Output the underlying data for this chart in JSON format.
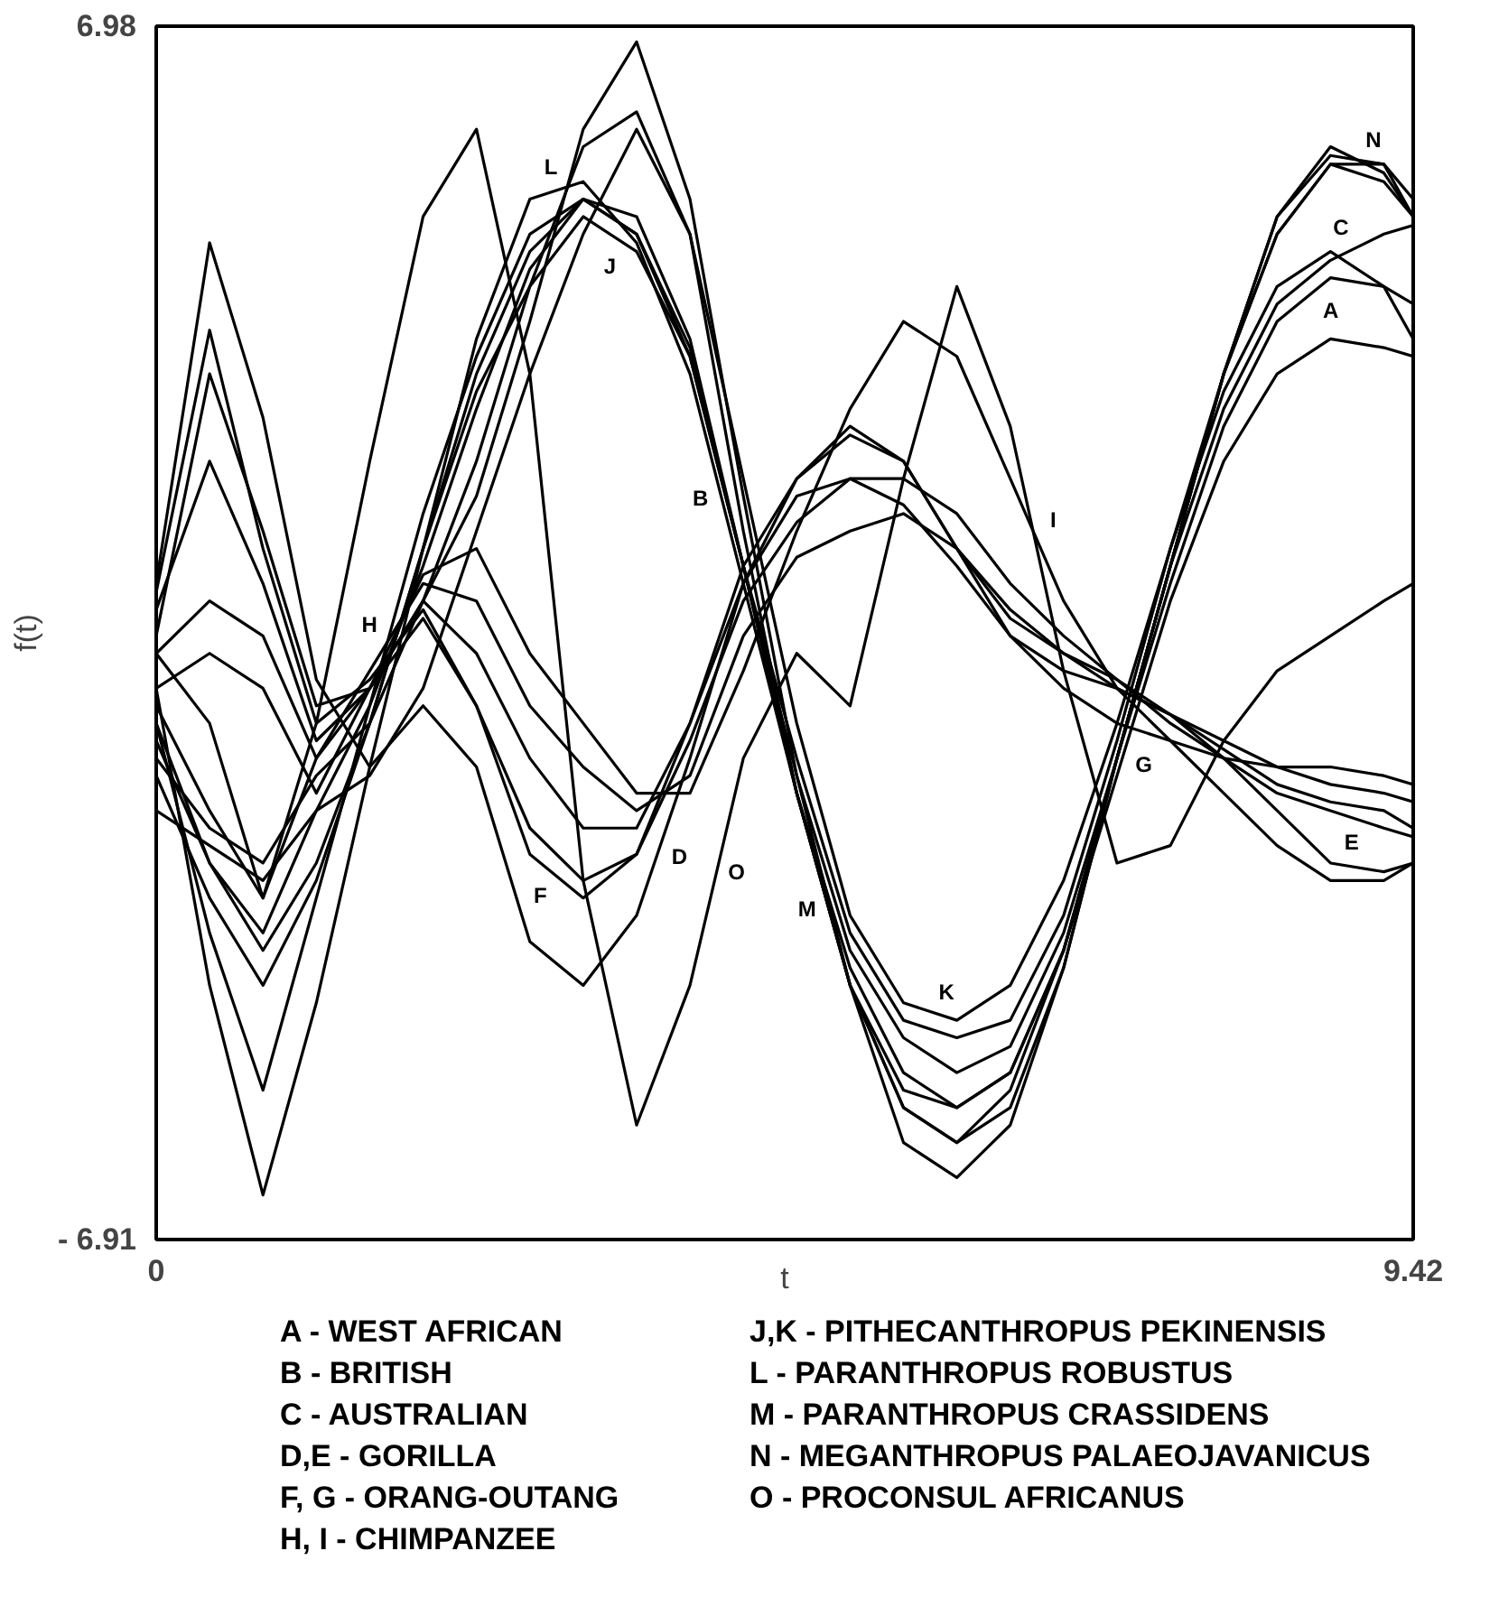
{
  "chart_data": {
    "type": "line",
    "xlabel": "t",
    "ylabel": "f(t)",
    "xlim": [
      0,
      9.42
    ],
    "xticks": [
      0,
      9.42
    ],
    "ylim": [
      -6.91,
      6.98
    ],
    "yticks": [
      6.98,
      {
        "value": -6.91,
        "label": "- 6.91"
      }
    ],
    "line_style": "solid",
    "x": [
      0,
      0.4,
      0.8,
      1.2,
      1.6,
      2.0,
      2.4,
      2.8,
      3.2,
      3.6,
      4.0,
      4.4,
      4.8,
      5.2,
      5.6,
      6.0,
      6.4,
      6.8,
      7.2,
      7.6,
      8.0,
      8.4,
      8.8,
      9.2,
      9.42
    ],
    "series": [
      {
        "name": "A",
        "color": "#000000",
        "values": [
          -1.6,
          -3.0,
          -4.0,
          -2.8,
          -1.0,
          1.0,
          3.0,
          4.4,
          5.0,
          4.6,
          3.3,
          0.8,
          -1.6,
          -3.6,
          -4.6,
          -5.0,
          -4.7,
          -3.4,
          -1.4,
          0.6,
          2.4,
          3.6,
          4.1,
          4.0,
          3.8
        ]
      },
      {
        "name": "B",
        "color": "#000000",
        "values": [
          -0.6,
          -4.0,
          -6.4,
          -4.2,
          -1.5,
          1.0,
          3.4,
          5.0,
          5.2,
          4.5,
          3.0,
          0.6,
          -1.8,
          -3.8,
          -5.0,
          -5.4,
          -5.0,
          -3.6,
          -1.6,
          0.4,
          2.0,
          3.0,
          3.4,
          3.3,
          3.2
        ]
      },
      {
        "name": "C",
        "color": "#000000",
        "values": [
          -1.0,
          -3.4,
          -5.2,
          -3.0,
          -0.8,
          1.4,
          3.2,
          4.6,
          5.0,
          4.6,
          3.2,
          0.8,
          -1.8,
          -4.0,
          -5.4,
          -5.8,
          -5.4,
          -3.8,
          -1.4,
          0.8,
          2.6,
          3.8,
          4.3,
          4.6,
          4.7
        ]
      },
      {
        "name": "D",
        "color": "#000000",
        "values": [
          0.6,
          4.5,
          2.5,
          -0.5,
          -1.5,
          -0.8,
          -1.5,
          -3.5,
          -4.0,
          -3.2,
          -1.4,
          0.6,
          1.8,
          2.4,
          2.0,
          1.0,
          0.0,
          -0.4,
          -0.6,
          -0.9,
          -1.2,
          -1.5,
          -1.7,
          -1.8,
          -1.9
        ]
      },
      {
        "name": "E",
        "color": "#000000",
        "values": [
          0.0,
          3.0,
          1.2,
          -0.8,
          -0.6,
          0.2,
          -0.8,
          -2.2,
          -2.8,
          -2.5,
          -1.2,
          0.4,
          1.3,
          1.8,
          1.8,
          1.4,
          0.6,
          0.0,
          -0.5,
          -1.0,
          -1.4,
          -1.8,
          -2.0,
          -2.2,
          -2.3
        ]
      },
      {
        "name": "F",
        "color": "#000000",
        "values": [
          0.5,
          3.5,
          1.0,
          -1.0,
          -0.5,
          0.3,
          -0.8,
          -2.5,
          -3.0,
          -2.5,
          -1.0,
          0.8,
          1.8,
          2.3,
          2.0,
          1.0,
          0.2,
          -0.2,
          -0.5,
          -0.9,
          -1.3,
          -1.7,
          -1.9,
          -2.0,
          -2.2
        ]
      },
      {
        "name": "G",
        "color": "#000000",
        "values": [
          0.3,
          2.0,
          0.6,
          -1.2,
          -0.6,
          0.4,
          -0.2,
          -1.4,
          -2.2,
          -2.2,
          -1.0,
          0.6,
          1.6,
          1.8,
          1.5,
          0.8,
          0.0,
          -0.6,
          -1.0,
          -1.2,
          -1.4,
          -1.5,
          -1.5,
          -1.6,
          -1.7
        ]
      },
      {
        "name": "H",
        "color": "#000000",
        "values": [
          -0.2,
          0.4,
          0.0,
          -1.4,
          -0.4,
          0.6,
          0.4,
          -0.8,
          -1.5,
          -2.0,
          -1.6,
          0.0,
          0.9,
          1.2,
          1.4,
          1.0,
          0.3,
          -0.2,
          -0.6,
          -0.9,
          -1.4,
          -2.0,
          -2.6,
          -2.7,
          -2.6
        ]
      },
      {
        "name": "I",
        "color": "#000000",
        "values": [
          -0.6,
          -0.2,
          -0.6,
          -1.8,
          -0.6,
          0.7,
          1.0,
          -0.2,
          -1.0,
          -1.8,
          -1.8,
          -0.4,
          1.2,
          2.6,
          3.6,
          3.2,
          1.8,
          0.4,
          -0.6,
          -1.2,
          -1.8,
          -2.4,
          -2.8,
          -2.8,
          -2.6
        ]
      },
      {
        "name": "J",
        "color": "#000000",
        "values": [
          -1.2,
          -2.6,
          -3.6,
          -2.6,
          -1.0,
          1.0,
          2.8,
          4.0,
          4.8,
          4.4,
          3.2,
          0.8,
          -1.4,
          -3.4,
          -4.4,
          -4.6,
          -4.4,
          -3.2,
          -1.2,
          1.0,
          3.0,
          4.6,
          5.4,
          5.4,
          4.8
        ]
      },
      {
        "name": "K",
        "color": "#000000",
        "values": [
          -2.0,
          -2.4,
          -2.8,
          -2.0,
          -1.6,
          -0.6,
          1.2,
          3.0,
          4.6,
          5.8,
          4.6,
          1.8,
          -1.0,
          -3.2,
          -4.2,
          -4.4,
          -4.0,
          -2.8,
          -1.0,
          1.0,
          2.8,
          4.0,
          4.4,
          4.0,
          3.4
        ]
      },
      {
        "name": "L",
        "color": "#000000",
        "values": [
          -0.8,
          -2.0,
          -3.0,
          -1.4,
          -0.6,
          0.4,
          1.6,
          3.6,
          5.8,
          6.8,
          5.0,
          1.6,
          -1.6,
          -4.0,
          -5.4,
          -5.8,
          -5.2,
          -3.6,
          -1.4,
          0.8,
          3.0,
          4.8,
          5.5,
          5.4,
          5.0
        ]
      },
      {
        "name": "M",
        "color": "#000000",
        "values": [
          -1.4,
          -2.2,
          -2.6,
          -1.6,
          -1.0,
          0.4,
          2.0,
          4.0,
          5.6,
          6.0,
          4.6,
          1.2,
          -1.8,
          -4.0,
          -5.2,
          -5.4,
          -5.0,
          -3.6,
          -1.4,
          0.8,
          3.0,
          4.6,
          5.4,
          5.2,
          4.8
        ]
      },
      {
        "name": "N",
        "color": "#000000",
        "values": [
          -1.0,
          -2.6,
          -3.4,
          -2.0,
          -0.8,
          0.8,
          2.6,
          4.2,
          5.0,
          4.8,
          3.4,
          0.8,
          -1.8,
          -4.0,
          -5.8,
          -6.2,
          -5.6,
          -3.8,
          -1.4,
          0.8,
          3.0,
          4.8,
          5.6,
          5.3,
          4.8
        ]
      },
      {
        "name": "O",
        "color": "#000000",
        "values": [
          -0.2,
          -1.0,
          -3.0,
          -1.0,
          2.0,
          4.8,
          5.8,
          3.0,
          -2.8,
          -5.6,
          -4.0,
          -1.4,
          -0.2,
          -0.8,
          1.8,
          4.0,
          2.4,
          -0.4,
          -2.6,
          -2.4,
          -1.2,
          -0.4,
          0.0,
          0.4,
          0.6
        ]
      }
    ],
    "annotations": [
      "A - WEST AFRICAN",
      "B - BRITISH",
      "C - AUSTRALIAN",
      "D,E - GORILLA",
      "F, G - ORANG-OUTANG",
      "H, I - CHIMPANZEE",
      "J,K - PITHECANTHROPUS PEKINENSIS",
      "L - PARANTHROPUS ROBUSTUS",
      "M - PARANTHROPUS CRASSIDENS",
      "N - MEGANTHROPUS PALAEOJAVANICUS",
      "O - PROCONSUL AFRICANUS"
    ]
  }
}
